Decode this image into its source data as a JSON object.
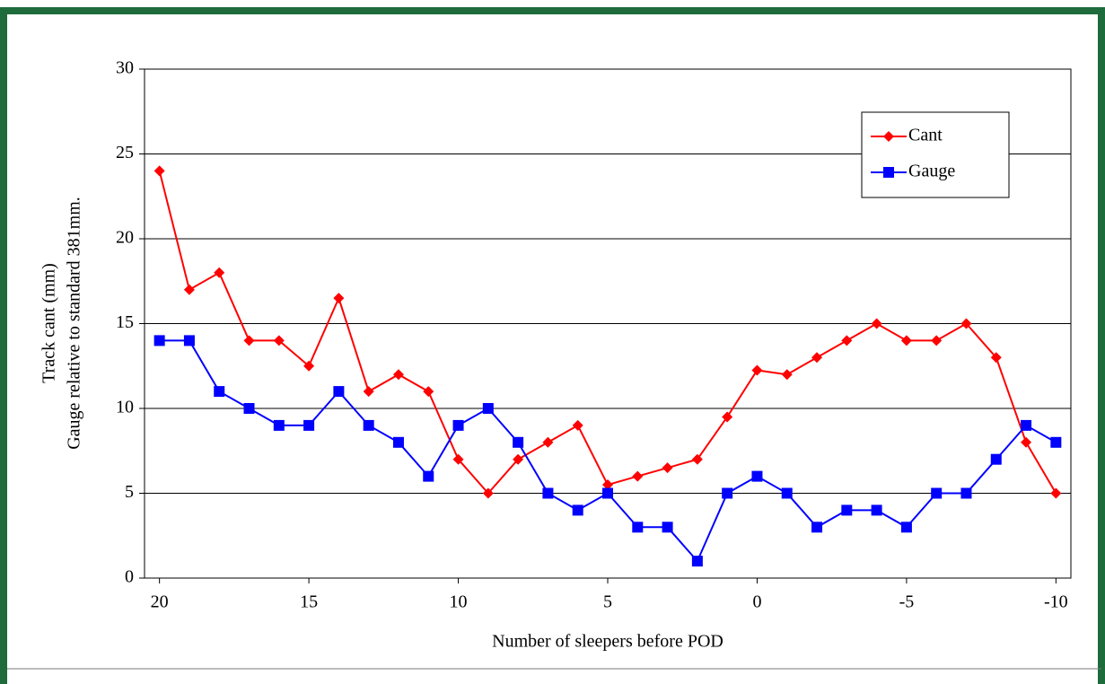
{
  "chart_data": {
    "type": "line",
    "xlabel": "Number of sleepers before POD",
    "ylabel_lines": [
      "Track cant (mm)",
      "Gauge relative to standard 381mm."
    ],
    "x": [
      20,
      19,
      18,
      17,
      16,
      15,
      14,
      13,
      12,
      11,
      10,
      9,
      8,
      7,
      6,
      5,
      4,
      3,
      2,
      1,
      0,
      -1,
      -2,
      -3,
      -4,
      -5,
      -6,
      -7,
      -8,
      -9,
      -10
    ],
    "series": [
      {
        "name": "Cant",
        "color": "#ff0000",
        "marker": "diamond",
        "values": [
          24,
          17,
          18,
          14,
          14,
          12.5,
          16.5,
          11,
          12,
          11,
          7,
          5,
          7,
          8,
          9,
          5.5,
          6,
          6.5,
          7,
          9.5,
          12.25,
          12,
          13,
          14,
          15,
          14,
          14,
          15,
          13,
          8,
          5
        ]
      },
      {
        "name": "Gauge",
        "color": "#0000ff",
        "marker": "square",
        "values": [
          14,
          14,
          11,
          10,
          9,
          9,
          11,
          9,
          8,
          6,
          9,
          10,
          8,
          5,
          4,
          5,
          3,
          3,
          1,
          5,
          6,
          5,
          3,
          4,
          4,
          3,
          5,
          5,
          7,
          9,
          8
        ]
      }
    ],
    "xlim": [
      20.5,
      -10.5
    ],
    "xticks": [
      20,
      15,
      10,
      5,
      0,
      -5,
      -10
    ],
    "ylim": [
      0,
      30
    ],
    "yticks": [
      0,
      5,
      10,
      15,
      20,
      25,
      30
    ],
    "grid": true,
    "legend": "top-right"
  }
}
